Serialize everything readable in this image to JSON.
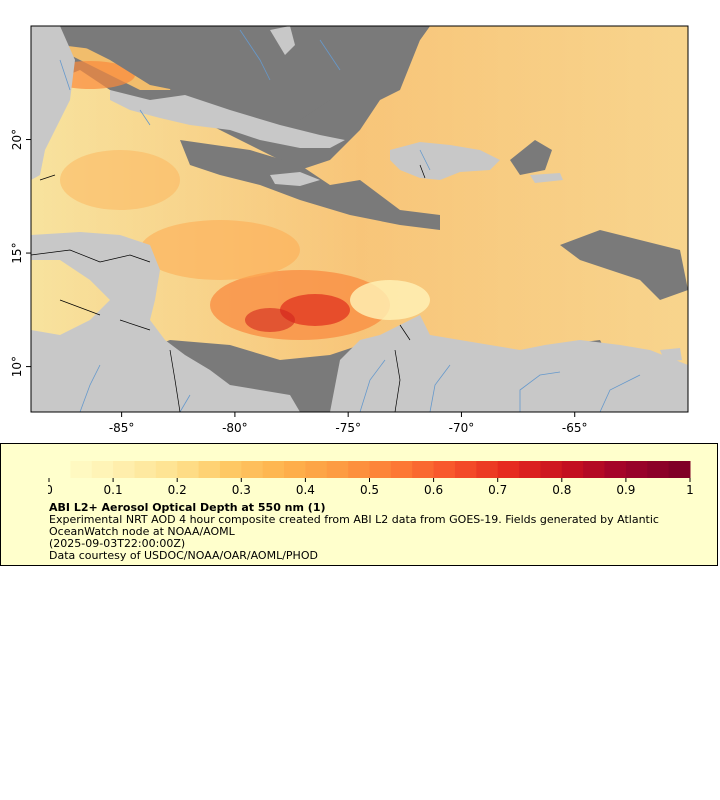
{
  "map": {
    "lon_ticks": [
      {
        "value": -85,
        "label": "-85°"
      },
      {
        "value": -80,
        "label": "-80°"
      },
      {
        "value": -75,
        "label": "-75°"
      },
      {
        "value": -70,
        "label": "-70°"
      },
      {
        "value": -65,
        "label": "-65°"
      }
    ],
    "lat_ticks": [
      {
        "value": 20,
        "label": "20°"
      },
      {
        "value": 15,
        "label": "15°"
      },
      {
        "value": 10,
        "label": "10°"
      }
    ],
    "lon_range": [
      -89,
      -60
    ],
    "lat_range": [
      8,
      25
    ],
    "colors": {
      "land": "#c8c8c8",
      "no_data": "#7a7a7a",
      "rivers": "#6699cc",
      "borders": "#000000"
    }
  },
  "legend": {
    "title": "ABI L2+ Aerosol Optical Depth at 550 nm (1)",
    "description": "Experimental NRT AOD 4 hour composite created from ABI L2 data from GOES-19. Fields generated by Atlantic OceanWatch node at NOAA/AOML",
    "timestamp": "(2025-09-03T22:00:00Z)",
    "credit": "Data courtesy of USDOC/NOAA/OAR/AOML/PHOD",
    "scale_min": 0,
    "scale_max": 1,
    "tick_labels": [
      "0",
      "0.1",
      "0.2",
      "0.3",
      "0.4",
      "0.5",
      "0.6",
      "0.7",
      "0.8",
      "0.9",
      "1"
    ],
    "colors": [
      "#ffffcc",
      "#fff0b0",
      "#fee391",
      "#fec965",
      "#feb24c",
      "#fd9a41",
      "#fd7b35",
      "#f7522a",
      "#e52a1f",
      "#c7111f",
      "#a0022a",
      "#800026"
    ],
    "background": "#ffffcc"
  }
}
